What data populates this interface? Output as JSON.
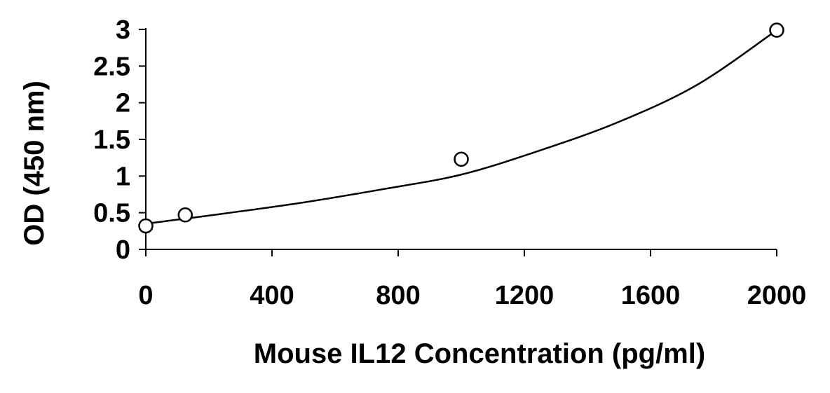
{
  "chart_data": {
    "type": "scatter",
    "title": "",
    "xlabel": "Mouse IL12 Concentration (pg/ml)",
    "ylabel": "OD (450 nm)",
    "xlim": [
      0,
      2000
    ],
    "ylim": [
      0,
      3
    ],
    "x_ticks": [
      "0",
      "400",
      "800",
      "1200",
      "1600",
      "2000"
    ],
    "y_ticks": [
      "0",
      "0.5",
      "1",
      "1.5",
      "2",
      "2.5",
      "3"
    ],
    "grid": false,
    "legend": "none",
    "series": [
      {
        "marker": "open-circle",
        "x": [
          0,
          125,
          1000,
          2000
        ],
        "y": [
          0.32,
          0.47,
          1.23,
          2.99
        ]
      }
    ],
    "fit_curve": {
      "type": "polynomial-2",
      "x": [
        0,
        250,
        500,
        750,
        1000,
        1250,
        1500,
        1750,
        2000
      ],
      "y": [
        0.35,
        0.49,
        0.64,
        0.82,
        1.02,
        1.35,
        1.74,
        2.25,
        2.99
      ]
    },
    "colors": {
      "line": "#000000",
      "marker_fill": "#ffffff",
      "background": "#ffffff"
    }
  }
}
